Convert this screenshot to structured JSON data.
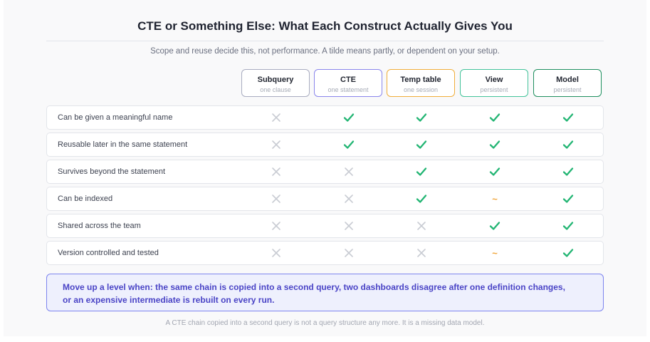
{
  "title": "CTE or Something Else: What Each Construct Actually Gives You",
  "subtitle": "Scope and reuse decide this, not performance. A tilde means partly, or dependent on your setup.",
  "columns": [
    {
      "name": "Subquery",
      "sub": "one clause",
      "color": "#a9acc0"
    },
    {
      "name": "CTE",
      "sub": "one statement",
      "color": "#8a86ec"
    },
    {
      "name": "Temp table",
      "sub": "one session",
      "color": "#f0ae3a"
    },
    {
      "name": "View",
      "sub": "persistent",
      "color": "#43c39a"
    },
    {
      "name": "Model",
      "sub": "persistent",
      "color": "#1f8f5f"
    }
  ],
  "rows": [
    {
      "label": "Can be given a meaningful name",
      "values": [
        "no",
        "yes",
        "yes",
        "yes",
        "yes"
      ]
    },
    {
      "label": "Reusable later in the same statement",
      "values": [
        "no",
        "yes",
        "yes",
        "yes",
        "yes"
      ]
    },
    {
      "label": "Survives beyond the statement",
      "values": [
        "no",
        "no",
        "yes",
        "yes",
        "yes"
      ]
    },
    {
      "label": "Can be indexed",
      "values": [
        "no",
        "no",
        "yes",
        "partial",
        "yes"
      ]
    },
    {
      "label": "Shared across the team",
      "values": [
        "no",
        "no",
        "no",
        "yes",
        "yes"
      ]
    },
    {
      "label": "Version controlled and tested",
      "values": [
        "no",
        "no",
        "no",
        "partial",
        "yes"
      ]
    }
  ],
  "symbols": {
    "yes": "check-icon",
    "no": "cross-icon",
    "partial": "~"
  },
  "colors": {
    "yes": "#22b573",
    "no": "#c9ccd3",
    "partial": "#f0a53a"
  },
  "callout": {
    "line1": "Move up a level when: the same chain is copied into a second query, two dashboards disagree after one definition changes,",
    "line2": "or an expensive intermediate is rebuilt on every run."
  },
  "footnote": "A CTE chain copied into a second query is not a query structure any more. It is a missing data model."
}
